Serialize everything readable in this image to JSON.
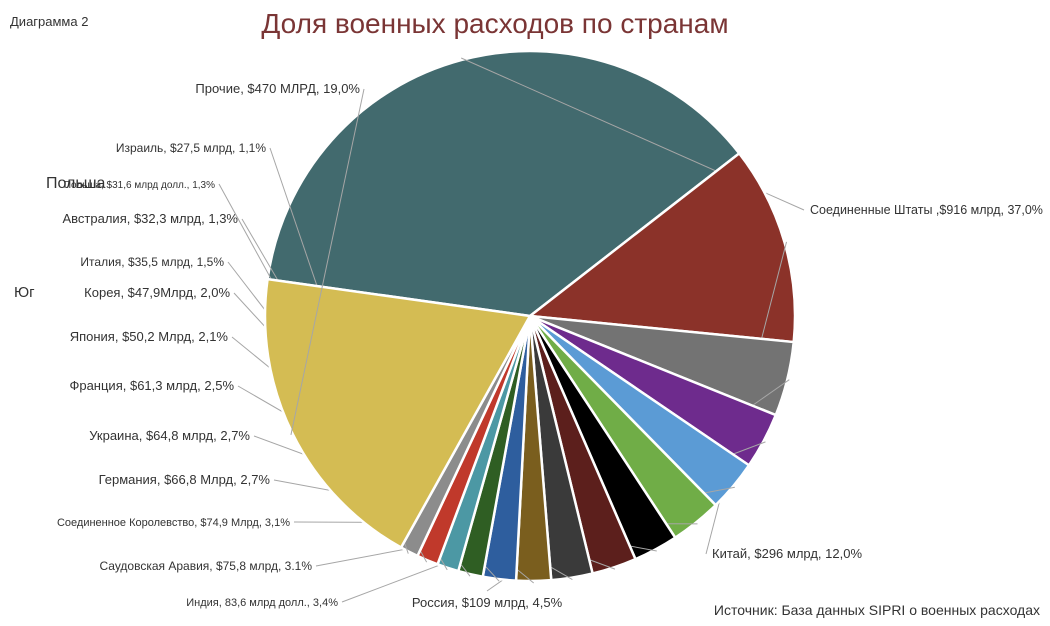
{
  "page": {
    "caption": "Диаграмма 2",
    "title": "Доля военных расходов по странам",
    "source": "Источник: База данных SIPRI о военных расходах",
    "poland_word": "Польша",
    "south_word": "Юг"
  },
  "chart_data": {
    "type": "pie",
    "title": "Доля военных расходов по странам",
    "slices": [
      {
        "label": "Соединенные Штаты ,$916 млрд, 37,0%",
        "value": 37.0,
        "color": "#426a6e"
      },
      {
        "label": "Китай, $296 млрд, 12,0%",
        "value": 12.0,
        "color": "#8b3229"
      },
      {
        "label": "Россия, $109 млрд, 4,5%",
        "value": 4.5,
        "color": "#737373"
      },
      {
        "label": "Индия, 83,6 млрд долл., 3,4%",
        "value": 3.4,
        "color": "#6e2b8d"
      },
      {
        "label": "Саудовская Аравия, $75,8 млрд, 3.1%",
        "value": 3.1,
        "color": "#5b9bd5"
      },
      {
        "label": "Соединенное Королевство, $74,9 Млрд, 3,1%",
        "value": 3.1,
        "color": "#70ad47"
      },
      {
        "label": "Германия, $66,8 Млрд, 2,7%",
        "value": 2.7,
        "color": "#000000"
      },
      {
        "label": "Украина, $64,8 млрд, 2,7%",
        "value": 2.7,
        "color": "#5c1f1c"
      },
      {
        "label": "Франция, $61,3 млрд, 2,5%",
        "value": 2.5,
        "color": "#3a3a3a"
      },
      {
        "label": "Япония, $50,2 Млрд, 2,1%",
        "value": 2.1,
        "color": "#7a5e1e"
      },
      {
        "label": "Корея, $47,9Млрд, 2,0%",
        "value": 2.0,
        "color": "#2e5e9e"
      },
      {
        "label": "Италия, $35,5 млрд, 1,5%",
        "value": 1.5,
        "color": "#2f5e23"
      },
      {
        "label": "Австралия, $32,3 млрд, 1,3%",
        "value": 1.3,
        "color": "#4c98a4"
      },
      {
        "label": "Польша, $31,6 млрд долл., 1,3%",
        "value": 1.3,
        "color": "#c0392b"
      },
      {
        "label": "Израиль, $27,5 млрд, 1,1%",
        "value": 1.1,
        "color": "#8c8c8c"
      },
      {
        "label": "Прочие, $470 МЛРД, 19,0%",
        "value": 19.0,
        "color": "#d4bc53"
      }
    ]
  }
}
